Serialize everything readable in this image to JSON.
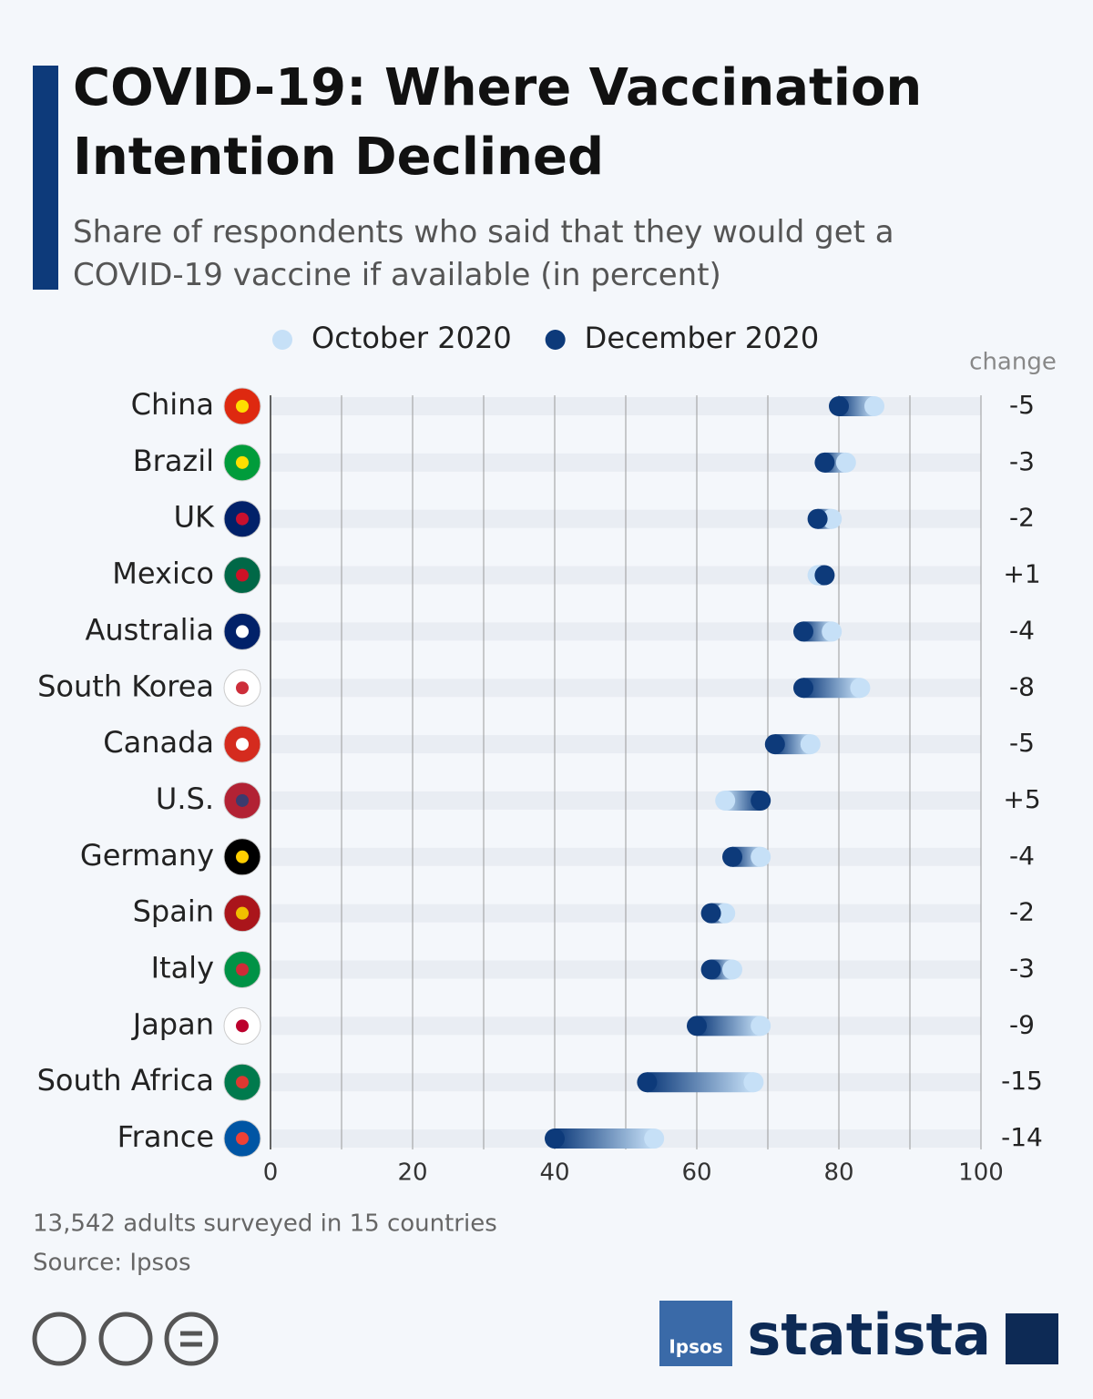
{
  "chart_data": {
    "type": "dumbbell",
    "title": "COVID-19: Where Vaccination Intention Declined",
    "subtitle": "Share of respondents who said that they would get a COVID-19 vaccine if available (in percent)",
    "categories": [
      "China",
      "Brazil",
      "UK",
      "Mexico",
      "Australia",
      "South Korea",
      "Canada",
      "U.S.",
      "Germany",
      "Spain",
      "Italy",
      "Japan",
      "South Africa",
      "France"
    ],
    "series": [
      {
        "name": "October 2020",
        "color": "#c6e0f7",
        "values": [
          85,
          81,
          79,
          77,
          79,
          83,
          76,
          64,
          69,
          64,
          65,
          69,
          68,
          54
        ]
      },
      {
        "name": "December 2020",
        "color": "#0d3a7a",
        "values": [
          80,
          78,
          77,
          78,
          75,
          75,
          71,
          69,
          65,
          62,
          62,
          60,
          53,
          40
        ]
      }
    ],
    "change_title": "change",
    "changes": [
      "-5",
      "-3",
      "-2",
      "+1",
      "-4",
      "-8",
      "-5",
      "+5",
      "-4",
      "-2",
      "-3",
      "-9",
      "-15",
      "-14"
    ],
    "xlim": [
      0,
      100
    ],
    "xticks": [
      0,
      20,
      40,
      60,
      80,
      100
    ],
    "xgrid": [
      0,
      10,
      20,
      30,
      40,
      50,
      60,
      70,
      80,
      90,
      100
    ],
    "note": "13,542 adults surveyed in 15 countries",
    "source": "Source: Ipsos"
  },
  "branding": {
    "ipsos": "Ipsos",
    "statista": "statista"
  }
}
